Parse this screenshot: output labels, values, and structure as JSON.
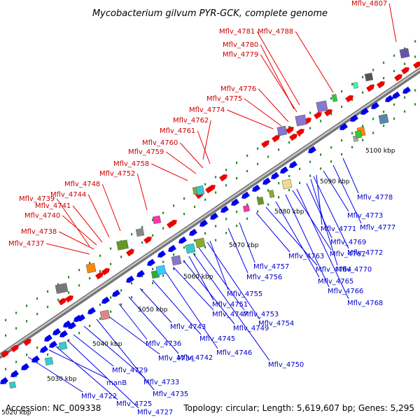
{
  "title": "Mycobacterium gilvum PYR-GCK, complete genome",
  "accession": "Accession: NC_009338",
  "summary": "Topology: circular; Length: 5,619,607 bp; Genes: 5,295",
  "colors": {
    "forward": "#ee0000",
    "reverse": "#0000ee",
    "forward_label": "#cc0000",
    "reverse_label": "#0000cc",
    "tick_dot": "#2a8a2a"
  },
  "kbp_ticks": [
    "5020 kbp",
    "5030 kbp",
    "5040 kbp",
    "5050 kbp",
    "5060 kbp",
    "5070 kbp",
    "5080 kbp",
    "5090 kbp",
    "5100 kbp"
  ],
  "forward_genes": [
    "Mflv_4737",
    "Mflv_4738",
    "Mflv_4740",
    "Mflv_4741",
    "Mflv_4739",
    "Mflv_4744",
    "Mflv_4748",
    "Mflv_4752",
    "Mflv_4758",
    "Mflv_4759",
    "Mflv_4760",
    "Mflv_4761",
    "Mflv_4762",
    "Mflv_4774",
    "Mflv_4775",
    "Mflv_4776",
    "Mflv_4779",
    "Mflv_4780",
    "Mflv_4781",
    "Mflv_4788",
    "Mflv_4807"
  ],
  "reverse_genes": [
    "Mflv_4722",
    "manB",
    "Mflv_4725",
    "Mflv_4727",
    "Mflv_4729",
    "Mflv_4733",
    "Mflv_4735",
    "Mflv_4734",
    "Mflv_4736",
    "Mflv_4742",
    "Mflv_4743",
    "Mflv_4745",
    "Mflv_4746",
    "Mflv_4747",
    "Mflv_4749",
    "Mflv_4750",
    "Mflv_4751",
    "Mflv_4753",
    "Mflv_4754",
    "Mflv_4755",
    "Mflv_4756",
    "Mflv_4757",
    "Mflv_4763",
    "Mflv_4764",
    "Mflv_4765",
    "Mflv_4766",
    "Mflv_4767",
    "Mflv_4768",
    "Mflv_4769",
    "Mflv_4770",
    "Mflv_4771",
    "Mflv_4772",
    "Mflv_4773",
    "Mflv_4777",
    "Mflv_4778"
  ]
}
